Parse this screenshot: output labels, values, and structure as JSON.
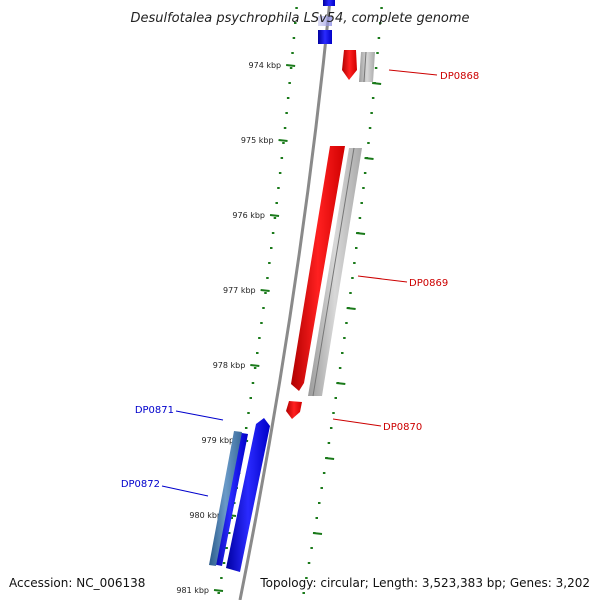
{
  "title": "Desulfotalea psychrophila LSv54, complete genome",
  "footer": {
    "accession": "Accession: NC_006138",
    "summary": "Topology: circular; Length: 3,523,383 bp; Genes: 3,202"
  },
  "colors": {
    "forward_gene": "#ff0000",
    "reverse_gene": "#0000ff",
    "gene_shadow": "#b3b3b3",
    "tick": "#1a7a1a",
    "backbone": "#8a8a8a",
    "label_forward": "#cc0000",
    "label_reverse": "#0000cc"
  },
  "axis": {
    "ticks": [
      {
        "label": "974 kbp",
        "kbp": 974
      },
      {
        "label": "975 kbp",
        "kbp": 975
      },
      {
        "label": "976 kbp",
        "kbp": 976
      },
      {
        "label": "977 kbp",
        "kbp": 977
      },
      {
        "label": "978 kbp",
        "kbp": 978
      },
      {
        "label": "979 kbp",
        "kbp": 979
      },
      {
        "label": "980 kbp",
        "kbp": 980
      },
      {
        "label": "981 kbp",
        "kbp": 981
      }
    ]
  },
  "genes": [
    {
      "label": "DP0868",
      "strand": "forward"
    },
    {
      "label": "DP0869",
      "strand": "forward"
    },
    {
      "label": "DP0870",
      "strand": "forward"
    },
    {
      "label": "DP0871",
      "strand": "reverse"
    },
    {
      "label": "DP0872",
      "strand": "reverse"
    }
  ]
}
